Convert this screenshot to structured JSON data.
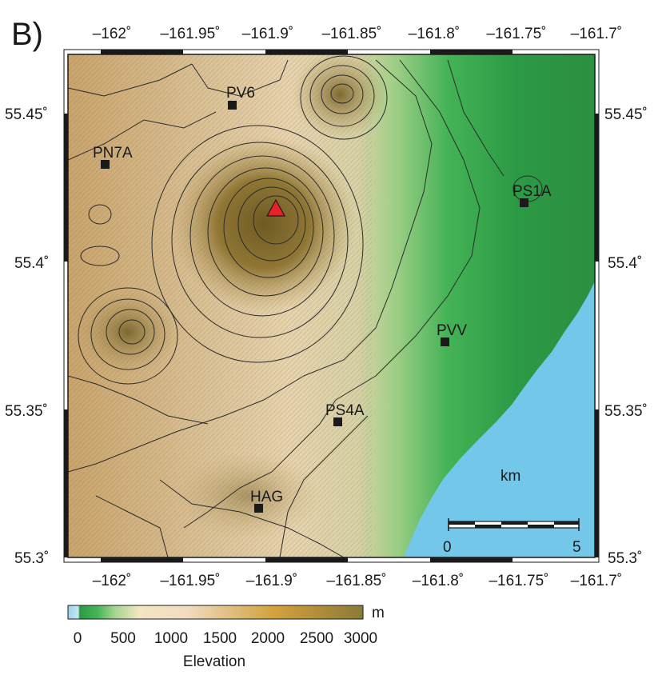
{
  "panel_label": "B)",
  "map": {
    "lon_range": [
      -162.02,
      -161.7
    ],
    "lat_range": [
      55.3,
      55.47
    ],
    "top_ticks": [
      "–162˚",
      "–161.95˚",
      "–161.9˚",
      "–161.85˚",
      "–161.8˚",
      "–161.75˚",
      "–161.7˚"
    ],
    "bottom_ticks": [
      "–162˚",
      "–161.95˚",
      "–161.9˚",
      "–161.85˚",
      "–161.8˚",
      "–161.75˚",
      "–161.7˚"
    ],
    "left_ticks": [
      "55.45˚",
      "55.4˚",
      "55.35˚",
      "55.3˚"
    ],
    "right_ticks": [
      "55.45˚",
      "55.4˚",
      "55.35˚",
      "55.3˚"
    ],
    "stations": [
      {
        "name": "PV6"
      },
      {
        "name": "PN7A"
      },
      {
        "name": "PS1A"
      },
      {
        "name": "PVV"
      },
      {
        "name": "PS4A"
      },
      {
        "name": "HAG"
      }
    ],
    "summit_marker": {
      "color": "#e8202a"
    },
    "scale_bar": {
      "unit_label": "km",
      "min_label": "0",
      "max_label": "5"
    },
    "ocean_color": "#73c8ea"
  },
  "colorbar": {
    "unit": "m",
    "ticks": [
      "0",
      "500",
      "1000",
      "1500",
      "2000",
      "2500",
      "3000"
    ],
    "label": "Elevation"
  }
}
